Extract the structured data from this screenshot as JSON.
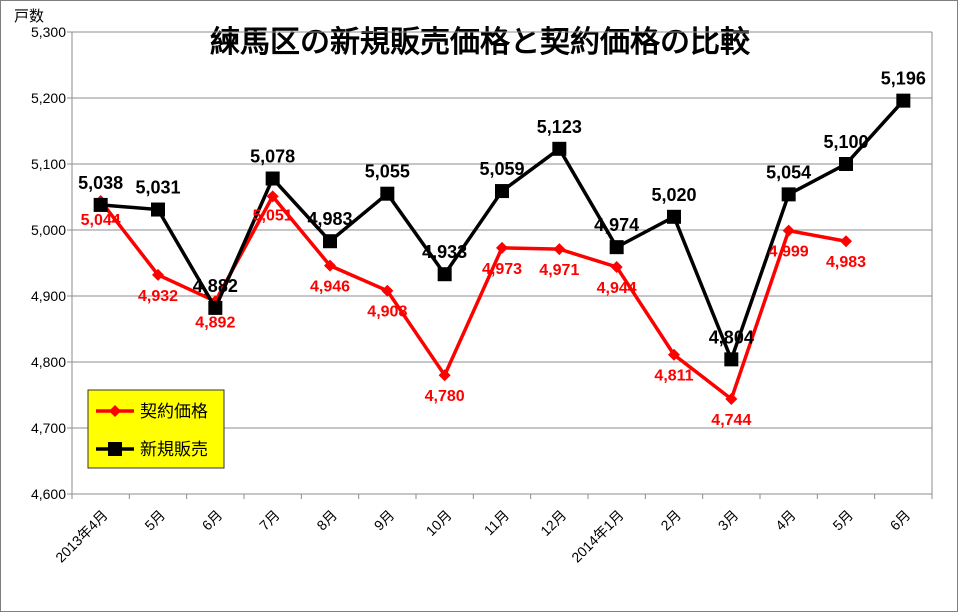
{
  "chart_data": {
    "type": "line",
    "title": "練馬区の新規販売価格と契約価格の比較",
    "ylabel": "戸数",
    "xlabel": "",
    "ylim": [
      4600,
      5300
    ],
    "yticks": [
      "4,600",
      "4,700",
      "4,800",
      "4,900",
      "5,000",
      "5,100",
      "5,200",
      "5,300"
    ],
    "ytick_values": [
      4600,
      4700,
      4800,
      4900,
      5000,
      5100,
      5200,
      5300
    ],
    "grid": true,
    "legend_position": "bottom-left",
    "categories": [
      "2013年4月",
      "5月",
      "6月",
      "7月",
      "8月",
      "9月",
      "10月",
      "11月",
      "12月",
      "2014年1月",
      "2月",
      "3月",
      "4月",
      "5月",
      "6月"
    ],
    "series": [
      {
        "name": "契約価格",
        "color": "#ff0000",
        "marker": "diamond",
        "values": [
          5044,
          4932,
          4892,
          5051,
          4946,
          4908,
          4780,
          4973,
          4971,
          4944,
          4811,
          4744,
          4999,
          4983,
          null
        ],
        "labels": [
          "5,044",
          "4,932",
          "4,892",
          "5,051",
          "4,946",
          "4,908",
          "4,780",
          "4,973",
          "4,971",
          "4,944",
          "4,811",
          "4,744",
          "4,999",
          "4,983",
          ""
        ]
      },
      {
        "name": "新規販売",
        "color": "#000000",
        "marker": "square",
        "values": [
          5038,
          5031,
          4882,
          5078,
          4983,
          5055,
          4933,
          5059,
          5123,
          4974,
          5020,
          4804,
          5054,
          5100,
          5196
        ],
        "labels": [
          "5,038",
          "5,031",
          "4,882",
          "5,078",
          "4,983",
          "5,055",
          "4,933",
          "5,059",
          "5,123",
          "4,974",
          "5,020",
          "4,804",
          "5,054",
          "5,100",
          "5,196"
        ]
      }
    ],
    "legend_bg": "#ffff00"
  }
}
